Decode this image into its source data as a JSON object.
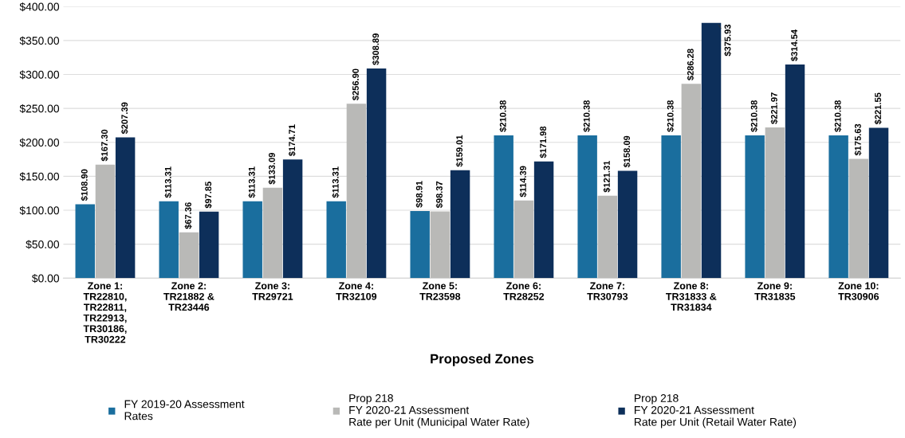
{
  "chart_data": {
    "type": "bar",
    "xlabel": "Proposed Zones",
    "categories": [
      "Zone 1:\nTR22810,\nTR22811,\nTR22913,\nTR30186,\nTR30222",
      "Zone 2:\nTR21882 &\nTR23446",
      "Zone 3:\nTR29721",
      "Zone 4:\nTR32109",
      "Zone 5:\nTR23598",
      "Zone 6:\nTR28252",
      "Zone 7:\nTR30793",
      "Zone 8:\nTR31833 &\nTR31834",
      "Zone 9:\nTR31835",
      "Zone 10:\nTR30906"
    ],
    "series": [
      {
        "name": "FY 2019-20 Assessment\nRates",
        "color": "#1a6e9e",
        "values": [
          108.9,
          113.31,
          113.31,
          113.31,
          98.91,
          210.38,
          210.38,
          210.38,
          210.38,
          210.38
        ],
        "value_labels": [
          "$108.90",
          "$113.31",
          "$113.31",
          "$113.31",
          "$98.91",
          "$210.38",
          "$210.38",
          "$210.38",
          "$210.38",
          "$210.38"
        ]
      },
      {
        "name": "Prop 218\nFY 2020-21 Assessment\nRate per Unit (Municipal Water Rate)",
        "color": "#b9b9b7",
        "values": [
          167.3,
          67.36,
          133.09,
          256.9,
          98.37,
          114.39,
          121.31,
          286.28,
          221.97,
          175.63
        ],
        "value_labels": [
          "$167.30",
          "$67.36",
          "$133.09",
          "$256.90",
          "$98.37",
          "$114.39",
          "$121.31",
          "$286.28",
          "$221.97",
          "$175.63"
        ]
      },
      {
        "name": "Prop 218\nFY 2020-21 Assessment\nRate per Unit (Retail Water Rate)",
        "color": "#0d2f5a",
        "values": [
          207.39,
          97.85,
          174.71,
          308.89,
          159.01,
          171.98,
          158.09,
          375.93,
          314.54,
          221.55
        ],
        "value_labels": [
          "$207.39",
          "$97.85",
          "$174.71",
          "$308.89",
          "$159.01",
          "$171.98",
          "$158.09",
          "$375.93",
          "$314.54",
          "$221.55"
        ]
      }
    ],
    "ylim": [
      0,
      400
    ],
    "yticks": [
      {
        "value": 0,
        "label": "$0.00"
      },
      {
        "value": 50,
        "label": "$50.00"
      },
      {
        "value": 100,
        "label": "$100.00"
      },
      {
        "value": 150,
        "label": "$150.00"
      },
      {
        "value": 200,
        "label": "$200.00"
      },
      {
        "value": 250,
        "label": "$250.00"
      },
      {
        "value": 300,
        "label": "$300.00"
      },
      {
        "value": 350,
        "label": "$350.00"
      },
      {
        "value": 400,
        "label": "$400.00"
      }
    ],
    "grid": "y",
    "legend": "bottom"
  }
}
